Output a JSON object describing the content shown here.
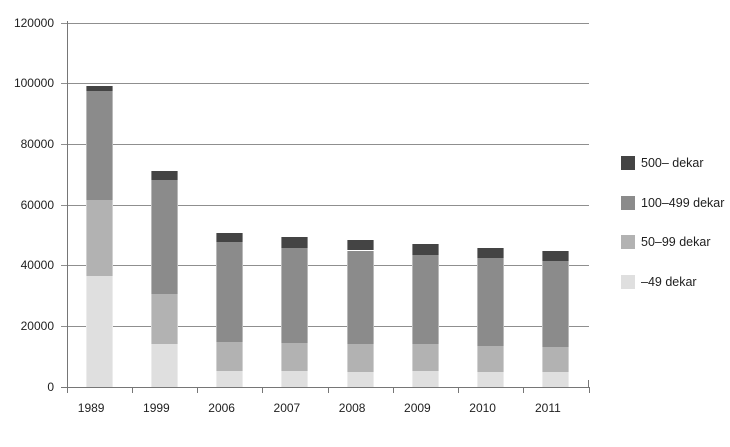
{
  "chart_data": {
    "type": "bar",
    "stacked": true,
    "title": "",
    "xlabel": "",
    "ylabel": "",
    "categories": [
      "1989",
      "1999",
      "2006",
      "2007",
      "2008",
      "2009",
      "2010",
      "2011"
    ],
    "series": [
      {
        "name": "–49 dekar",
        "color": "#dfdfdf",
        "values": [
          36500,
          14100,
          5300,
          5300,
          5100,
          5300,
          5100,
          5100
        ]
      },
      {
        "name": "50–99 dekar",
        "color": "#b2b2b2",
        "values": [
          25200,
          16500,
          9600,
          9200,
          9200,
          8800,
          8500,
          8100
        ]
      },
      {
        "name": "100–499 dekar",
        "color": "#8b8b8b",
        "values": [
          35900,
          37800,
          32800,
          31400,
          30700,
          29400,
          28900,
          28200
        ]
      },
      {
        "name": "500– dekar",
        "color": "#444444",
        "values": [
          1600,
          2700,
          3100,
          3700,
          3300,
          3700,
          3300,
          3600
        ]
      }
    ],
    "ylim": [
      0,
      120000
    ],
    "ytick_interval": 20000,
    "ytick_labels": [
      "0",
      "20000",
      "40000",
      "60000",
      "80000",
      "100000",
      "120000"
    ],
    "grid": true,
    "legend_position": "right"
  },
  "legend": {
    "items": [
      {
        "label": "500– dekar",
        "color": "#444444"
      },
      {
        "label": "100–499 dekar",
        "color": "#8b8b8b"
      },
      {
        "label": "50–99 dekar",
        "color": "#b2b2b2"
      },
      {
        "label": "–49 dekar",
        "color": "#dfdfdf"
      }
    ]
  }
}
